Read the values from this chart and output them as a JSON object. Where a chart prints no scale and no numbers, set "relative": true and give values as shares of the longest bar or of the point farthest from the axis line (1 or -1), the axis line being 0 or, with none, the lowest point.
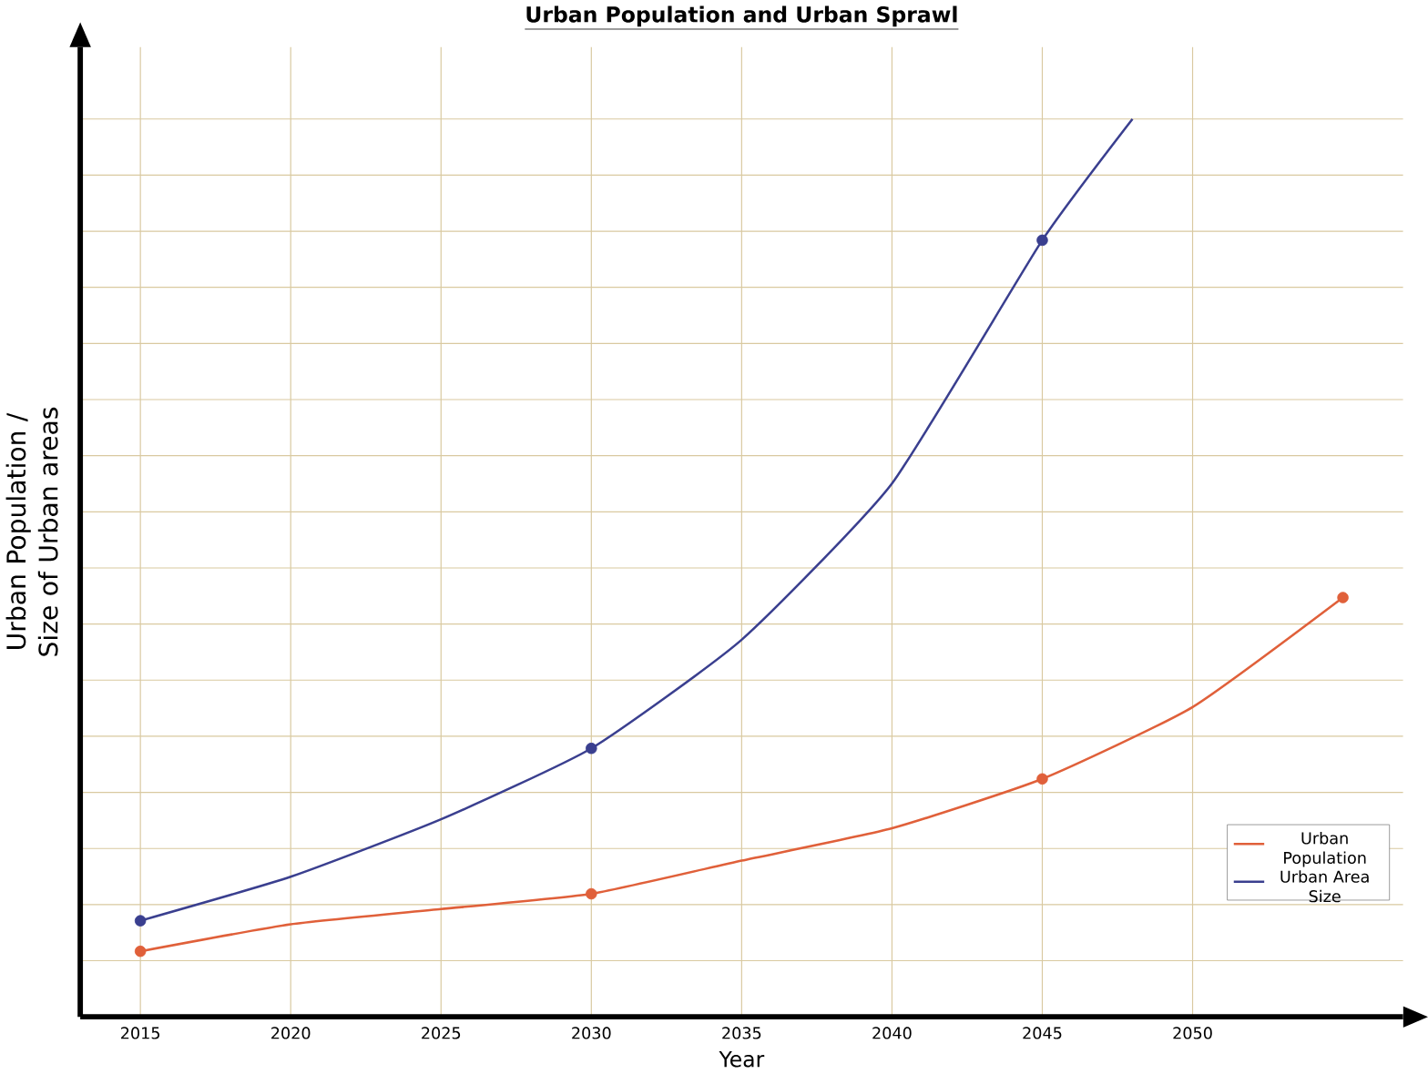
{
  "chart_data": {
    "type": "line",
    "title": "Urban Population and Urban Sprawl",
    "xlabel": "Year",
    "ylabel": "Urban Population / Size of Urban areas",
    "relative": true,
    "xlim": [
      2013,
      2057
    ],
    "xticks": [
      2015,
      2020,
      2025,
      2030,
      2035,
      2040,
      2045,
      2050
    ],
    "grid": true,
    "legend": "bottom right",
    "series": [
      {
        "name": "Urban Population",
        "color": "#e0603a",
        "x": [
          2015,
          2020,
          2025,
          2030,
          2035,
          2040,
          2045,
          2050,
          2055
        ],
        "values": [
          0.073,
          0.103,
          0.12,
          0.137,
          0.174,
          0.21,
          0.265,
          0.345,
          0.467
        ],
        "marker": "none"
      },
      {
        "name": "Urban Area Size",
        "color": "#3a3f8f",
        "x": [
          2015,
          2020,
          2025,
          2030,
          2035,
          2040,
          2045,
          2048
        ],
        "values": [
          0.107,
          0.156,
          0.22,
          0.299,
          0.42,
          0.594,
          0.865,
          1.0
        ],
        "marker": "none"
      },
      {
        "type": "scatter",
        "color": "#e0603a",
        "x": [
          2015,
          2030,
          2045,
          2055
        ],
        "values": [
          0.073,
          0.137,
          0.265,
          0.467
        ],
        "marker": "circle"
      },
      {
        "type": "scatter",
        "color": "#3a3f8f",
        "x": [
          2015,
          2030,
          2045
        ],
        "values": [
          0.107,
          0.299,
          0.865
        ],
        "marker": "circle"
      }
    ]
  }
}
